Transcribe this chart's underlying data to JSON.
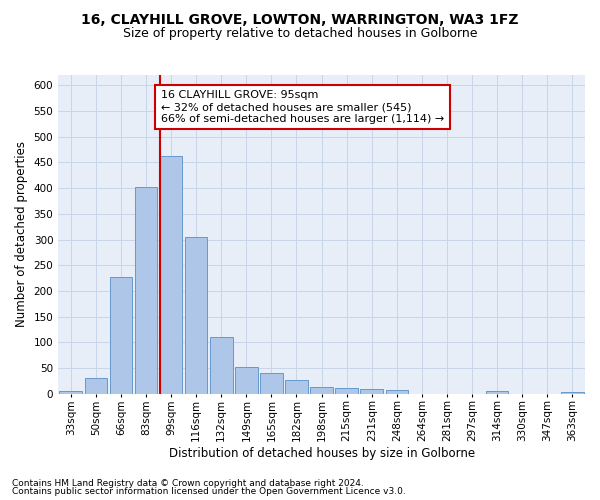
{
  "title1": "16, CLAYHILL GROVE, LOWTON, WARRINGTON, WA3 1FZ",
  "title2": "Size of property relative to detached houses in Golborne",
  "xlabel": "Distribution of detached houses by size in Golborne",
  "ylabel": "Number of detached properties",
  "footer1": "Contains HM Land Registry data © Crown copyright and database right 2024.",
  "footer2": "Contains public sector information licensed under the Open Government Licence v3.0.",
  "annotation_title": "16 CLAYHILL GROVE: 95sqm",
  "annotation_line1": "← 32% of detached houses are smaller (545)",
  "annotation_line2": "66% of semi-detached houses are larger (1,114) →",
  "bar_labels": [
    "33sqm",
    "50sqm",
    "66sqm",
    "83sqm",
    "99sqm",
    "116sqm",
    "132sqm",
    "149sqm",
    "165sqm",
    "182sqm",
    "198sqm",
    "215sqm",
    "231sqm",
    "248sqm",
    "264sqm",
    "281sqm",
    "297sqm",
    "314sqm",
    "330sqm",
    "347sqm",
    "363sqm"
  ],
  "bar_values": [
    6,
    30,
    228,
    403,
    463,
    305,
    110,
    53,
    40,
    27,
    14,
    12,
    10,
    7,
    0,
    0,
    0,
    5,
    0,
    0,
    3
  ],
  "bar_color": "#aec6e8",
  "bar_edge_color": "#6699cc",
  "red_line_index": 4,
  "red_line_color": "#cc0000",
  "annotation_box_color": "#cc0000",
  "ylim": [
    0,
    620
  ],
  "yticks": [
    0,
    50,
    100,
    150,
    200,
    250,
    300,
    350,
    400,
    450,
    500,
    550,
    600
  ],
  "background_color": "#ffffff",
  "grid_color": "#c8d4e8",
  "title_fontsize": 10,
  "subtitle_fontsize": 9,
  "axis_label_fontsize": 8.5,
  "tick_fontsize": 7.5,
  "footer_fontsize": 6.5,
  "annotation_fontsize": 8
}
